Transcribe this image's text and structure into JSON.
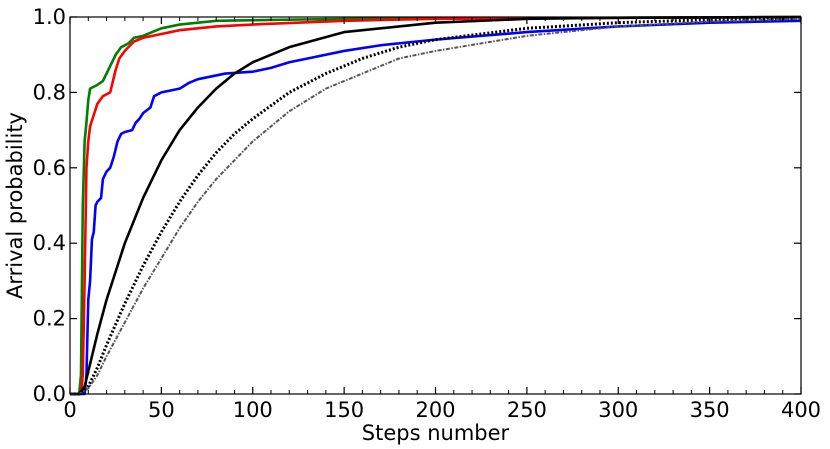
{
  "chart_data": {
    "type": "line",
    "title": "",
    "xlabel": "Steps number",
    "ylabel": "Arrival probability",
    "xlim": [
      0,
      400
    ],
    "ylim": [
      0,
      1
    ],
    "x_ticks": [
      0,
      50,
      100,
      150,
      200,
      250,
      300,
      350,
      400
    ],
    "x_tick_labels": [
      "0",
      "50",
      "100",
      "150",
      "200",
      "250",
      "300",
      "350",
      "400"
    ],
    "y_ticks": [
      0,
      0.2,
      0.4,
      0.6,
      0.8,
      1
    ],
    "y_tick_labels": [
      "0.0",
      "0.2",
      "0.4",
      "0.6",
      "0.8",
      "1.0"
    ],
    "grid": false,
    "legend": "none",
    "series": [
      {
        "color": "#008000",
        "style": "solid",
        "points": [
          [
            0,
            0
          ],
          [
            5,
            0
          ],
          [
            6,
            0.05
          ],
          [
            7,
            0.5
          ],
          [
            8,
            0.67
          ],
          [
            9,
            0.72
          ],
          [
            10,
            0.78
          ],
          [
            11,
            0.81
          ],
          [
            15,
            0.82
          ],
          [
            18,
            0.83
          ],
          [
            20,
            0.85
          ],
          [
            22,
            0.87
          ],
          [
            25,
            0.9
          ],
          [
            28,
            0.92
          ],
          [
            32,
            0.93
          ],
          [
            35,
            0.945
          ],
          [
            40,
            0.95
          ],
          [
            45,
            0.96
          ],
          [
            50,
            0.97
          ],
          [
            60,
            0.98
          ],
          [
            80,
            0.99
          ],
          [
            150,
            0.995
          ],
          [
            400,
            1
          ]
        ]
      },
      {
        "color": "#ff0000",
        "style": "solid",
        "points": [
          [
            0,
            0
          ],
          [
            6,
            0
          ],
          [
            7,
            0.05
          ],
          [
            8,
            0.3
          ],
          [
            9,
            0.6
          ],
          [
            10,
            0.67
          ],
          [
            11,
            0.71
          ],
          [
            13,
            0.74
          ],
          [
            15,
            0.77
          ],
          [
            18,
            0.79
          ],
          [
            22,
            0.8
          ],
          [
            23,
            0.82
          ],
          [
            25,
            0.86
          ],
          [
            27,
            0.89
          ],
          [
            30,
            0.91
          ],
          [
            35,
            0.935
          ],
          [
            40,
            0.945
          ],
          [
            50,
            0.955
          ],
          [
            60,
            0.965
          ],
          [
            80,
            0.975
          ],
          [
            100,
            0.98
          ],
          [
            150,
            0.99
          ],
          [
            200,
            0.995
          ],
          [
            400,
            1
          ]
        ]
      },
      {
        "color": "#0000ff",
        "style": "solid",
        "points": [
          [
            0,
            0
          ],
          [
            8,
            0
          ],
          [
            9,
            0.05
          ],
          [
            10,
            0.25
          ],
          [
            11,
            0.3
          ],
          [
            12,
            0.41
          ],
          [
            13,
            0.43
          ],
          [
            14,
            0.5
          ],
          [
            15,
            0.51
          ],
          [
            17,
            0.52
          ],
          [
            18,
            0.57
          ],
          [
            20,
            0.59
          ],
          [
            22,
            0.6
          ],
          [
            24,
            0.63
          ],
          [
            26,
            0.67
          ],
          [
            28,
            0.69
          ],
          [
            30,
            0.695
          ],
          [
            34,
            0.7
          ],
          [
            36,
            0.72
          ],
          [
            38,
            0.73
          ],
          [
            40,
            0.745
          ],
          [
            44,
            0.76
          ],
          [
            46,
            0.79
          ],
          [
            50,
            0.8
          ],
          [
            55,
            0.805
          ],
          [
            60,
            0.81
          ],
          [
            65,
            0.825
          ],
          [
            70,
            0.835
          ],
          [
            75,
            0.84
          ],
          [
            80,
            0.845
          ],
          [
            85,
            0.85
          ],
          [
            100,
            0.855
          ],
          [
            110,
            0.865
          ],
          [
            120,
            0.88
          ],
          [
            130,
            0.89
          ],
          [
            150,
            0.91
          ],
          [
            170,
            0.925
          ],
          [
            200,
            0.94
          ],
          [
            250,
            0.96
          ],
          [
            300,
            0.975
          ],
          [
            350,
            0.985
          ],
          [
            400,
            0.99
          ]
        ]
      },
      {
        "color": "#000000",
        "style": "solid",
        "points": [
          [
            0,
            0
          ],
          [
            5,
            0
          ],
          [
            8,
            0.02
          ],
          [
            10,
            0.06
          ],
          [
            15,
            0.16
          ],
          [
            20,
            0.25
          ],
          [
            30,
            0.4
          ],
          [
            40,
            0.52
          ],
          [
            50,
            0.62
          ],
          [
            60,
            0.7
          ],
          [
            70,
            0.76
          ],
          [
            80,
            0.81
          ],
          [
            90,
            0.85
          ],
          [
            100,
            0.88
          ],
          [
            120,
            0.92
          ],
          [
            150,
            0.96
          ],
          [
            200,
            0.985
          ],
          [
            250,
            0.995
          ],
          [
            300,
            0.998
          ],
          [
            400,
            1
          ]
        ]
      },
      {
        "color": "#000000",
        "style": "dotted",
        "points": [
          [
            0,
            0
          ],
          [
            5,
            0
          ],
          [
            10,
            0.02
          ],
          [
            15,
            0.07
          ],
          [
            20,
            0.13
          ],
          [
            30,
            0.24
          ],
          [
            40,
            0.34
          ],
          [
            50,
            0.43
          ],
          [
            60,
            0.51
          ],
          [
            70,
            0.58
          ],
          [
            80,
            0.64
          ],
          [
            90,
            0.69
          ],
          [
            100,
            0.73
          ],
          [
            120,
            0.8
          ],
          [
            140,
            0.85
          ],
          [
            160,
            0.89
          ],
          [
            180,
            0.92
          ],
          [
            200,
            0.94
          ],
          [
            250,
            0.97
          ],
          [
            300,
            0.985
          ],
          [
            350,
            0.993
          ],
          [
            400,
            0.997
          ]
        ]
      },
      {
        "color": "#555555",
        "style": "dashdot",
        "points": [
          [
            0,
            0
          ],
          [
            5,
            0
          ],
          [
            10,
            0.015
          ],
          [
            15,
            0.05
          ],
          [
            20,
            0.1
          ],
          [
            30,
            0.19
          ],
          [
            40,
            0.28
          ],
          [
            50,
            0.36
          ],
          [
            60,
            0.44
          ],
          [
            70,
            0.51
          ],
          [
            80,
            0.57
          ],
          [
            90,
            0.62
          ],
          [
            100,
            0.67
          ],
          [
            120,
            0.75
          ],
          [
            140,
            0.81
          ],
          [
            160,
            0.85
          ],
          [
            180,
            0.89
          ],
          [
            200,
            0.91
          ],
          [
            250,
            0.95
          ],
          [
            300,
            0.975
          ],
          [
            350,
            0.988
          ],
          [
            400,
            0.995
          ]
        ]
      }
    ]
  }
}
